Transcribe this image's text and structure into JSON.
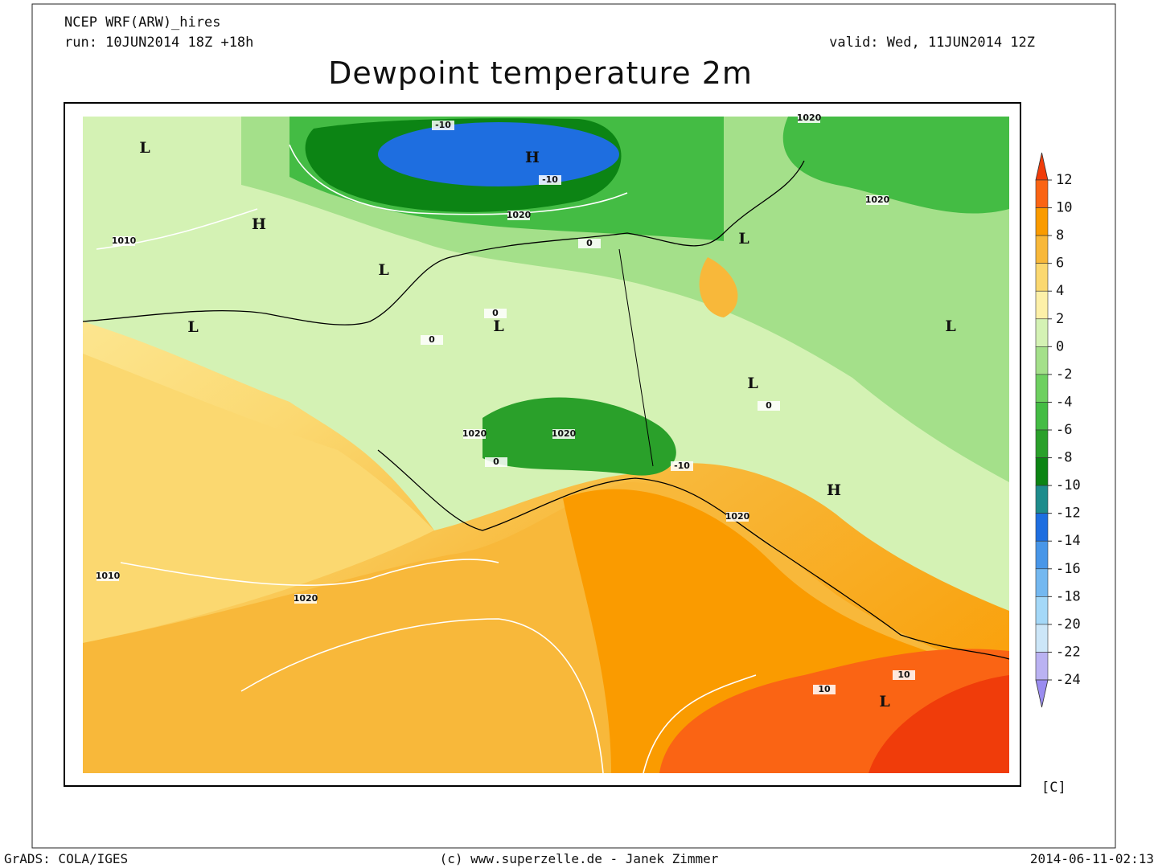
{
  "header": {
    "model": "NCEP WRF(ARW)_hires",
    "run": "run: 10JUN2014 18Z +18h",
    "valid": "valid: Wed, 11JUN2014 12Z",
    "title": "Dewpoint temperature 2m"
  },
  "legend": {
    "ticks": [
      12,
      10,
      8,
      6,
      4,
      2,
      0,
      -2,
      -4,
      -6,
      -8,
      -10,
      -12,
      -14,
      -16,
      -18,
      -20,
      -22,
      -24
    ],
    "colors": [
      "#f03c0a",
      "#fa6414",
      "#fa9b00",
      "#f8b83a",
      "#fbd870",
      "#fdf0a8",
      "#d4f2b4",
      "#a4e08a",
      "#6ed060",
      "#44bc44",
      "#2aa02a",
      "#0c8414",
      "#1e8c8c",
      "#1e6ee0",
      "#4896e8",
      "#74b8f0",
      "#a4d8f8",
      "#cce6f8",
      "#bab2f2",
      "#9a8cf0"
    ],
    "unit": "[C]"
  },
  "map": {
    "labels": [
      "L",
      "H",
      "-10",
      "-10",
      "1020",
      "H",
      "1010",
      "L",
      "L",
      "L",
      "L",
      "1020",
      "1020",
      "L",
      "L",
      "1020",
      "1020",
      "-10",
      "H",
      "1020",
      "1010",
      "1020",
      "10",
      "10",
      "L",
      "0",
      "0",
      "0",
      "0",
      "0"
    ]
  },
  "footer": {
    "left": "GrADS: COLA/IGES",
    "center": "(c) www.superzelle.de - Janek Zimmer",
    "right": "2014-06-11-02:13"
  }
}
